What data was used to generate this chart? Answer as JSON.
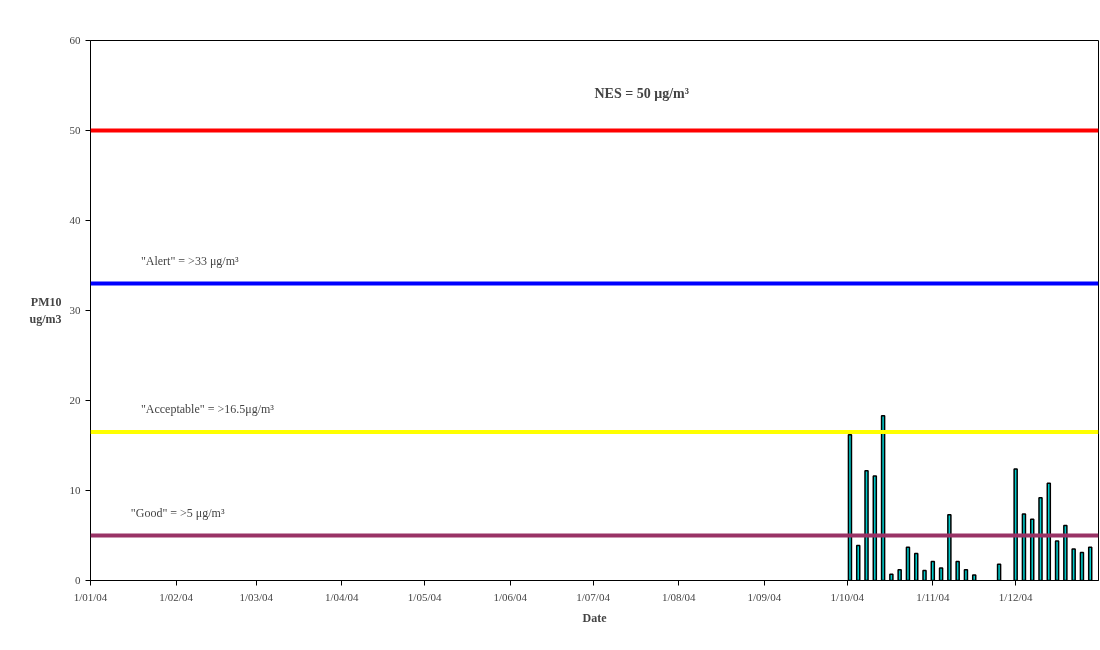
{
  "chart_data": {
    "type": "bar",
    "xlabel": "Date",
    "ylabel": "PM10 ug/m3",
    "x": [
      "2004-10-02",
      "2004-10-05",
      "2004-10-08",
      "2004-10-11",
      "2004-10-14",
      "2004-10-17",
      "2004-10-20",
      "2004-10-23",
      "2004-10-26",
      "2004-10-29",
      "2004-11-01",
      "2004-11-04",
      "2004-11-07",
      "2004-11-10",
      "2004-11-13",
      "2004-11-16",
      "2004-11-25",
      "2004-12-01",
      "2004-12-04",
      "2004-12-07",
      "2004-12-10",
      "2004-12-13",
      "2004-12-16",
      "2004-12-19",
      "2004-12-22",
      "2004-12-25",
      "2004-12-28"
    ],
    "values": [
      16.2,
      3.9,
      12.2,
      11.6,
      18.3,
      0.7,
      1.2,
      3.7,
      3.0,
      1.1,
      2.1,
      1.4,
      7.3,
      2.1,
      1.2,
      0.6,
      1.8,
      12.4,
      7.4,
      6.8,
      9.2,
      10.8,
      4.4,
      6.1,
      3.5,
      3.1,
      3.7
    ],
    "color": "#00cccc",
    "xlim": [
      "2004-01-01",
      "2004-12-31"
    ],
    "xticks": [
      {
        "value": "2004-01-01",
        "label": "1/01/04"
      },
      {
        "value": "2004-02-01",
        "label": "1/02/04"
      },
      {
        "value": "2004-03-01",
        "label": "1/03/04"
      },
      {
        "value": "2004-04-01",
        "label": "1/04/04"
      },
      {
        "value": "2004-05-01",
        "label": "1/05/04"
      },
      {
        "value": "2004-06-01",
        "label": "1/06/04"
      },
      {
        "value": "2004-07-01",
        "label": "1/07/04"
      },
      {
        "value": "2004-08-01",
        "label": "1/08/04"
      },
      {
        "value": "2004-09-01",
        "label": "1/09/04"
      },
      {
        "value": "2004-10-01",
        "label": "1/10/04"
      },
      {
        "value": "2004-11-01",
        "label": "1/11/04"
      },
      {
        "value": "2004-12-01",
        "label": "1/12/04"
      }
    ],
    "ylim": [
      0,
      60
    ],
    "yticks": [
      0,
      10,
      20,
      30,
      40,
      50,
      60
    ],
    "ref_lines": [
      {
        "axis": "y",
        "value": 50,
        "label": "NES = 50  μg/m³",
        "color": "#ff0000"
      },
      {
        "axis": "y",
        "value": 33,
        "label": "\"Alert\" = >33 μg/m³",
        "color": "#0000ff"
      },
      {
        "axis": "y",
        "value": 16.5,
        "label": "\"Acceptable\" = >16.5μg/m³",
        "color": "#ffff00"
      },
      {
        "axis": "y",
        "value": 5,
        "label": "\"Good\" = >5 μg/m³",
        "color": "#993366"
      }
    ],
    "grid": false
  }
}
